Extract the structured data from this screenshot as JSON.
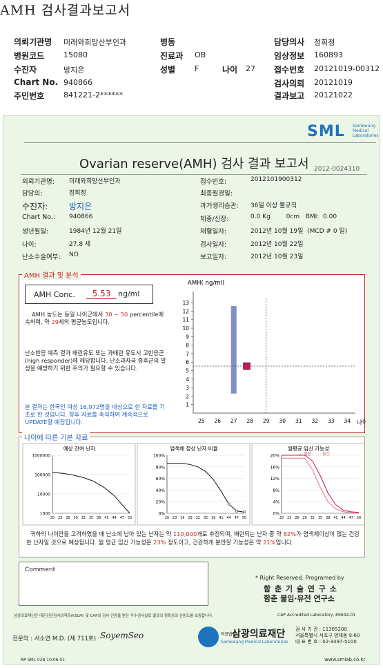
{
  "header": {
    "title": "AMH 검사결과보고서",
    "rows": [
      {
        "l1": "의뢰기관명",
        "v1": "미래와희망산부인과",
        "l2": "병동",
        "v2": "",
        "l3": "담당의사",
        "v3": "정희정"
      },
      {
        "l1": "병원코드",
        "v1": "15080",
        "l2": "진료과",
        "v2": "OB",
        "l3": "임상정보",
        "v3": "160893"
      },
      {
        "l1": "수진자",
        "v1": "방지은",
        "l2": "성별",
        "v2": "F",
        "l2b": "나이",
        "v2b": "27",
        "l3": "접수번호",
        "v3": "20121019-00312"
      },
      {
        "l1": "Chart No.",
        "v1": "940866",
        "l2": "",
        "v2": "",
        "l3": "검사의뢰",
        "v3": "20121019"
      },
      {
        "l1": "주민번호",
        "v1": "841221-2******",
        "l2": "",
        "v2": "",
        "l3": "결과보고",
        "v3": "20121022"
      }
    ]
  },
  "report": {
    "logo": "SML",
    "logo_sub": [
      "Samkwang",
      "Medical",
      "Laboratories"
    ],
    "title": "Ovarian reserve(AMH) 검사 결과 보고서",
    "doc_no": "2012-0024310",
    "left": [
      {
        "label": "의뢰기관명:",
        "value": "미래와희망산부인과"
      },
      {
        "label": "담당의:",
        "value": "정희정"
      },
      {
        "label": "수진자:",
        "value": "방지은"
      },
      {
        "label": "Chart No.:",
        "value": "940866"
      },
      {
        "label": "생년월일:",
        "value": "1984년 12월 21일"
      },
      {
        "label": "나이:",
        "value": "27.8 세"
      },
      {
        "label": "난소수술여부:",
        "value": "NO"
      }
    ],
    "right": [
      {
        "label": "접수번호:",
        "value": "2012101900312"
      },
      {
        "label": "최종월경일:",
        "value": ""
      },
      {
        "label": "과거생리습관:",
        "value": "36일 이상 불규칙"
      },
      {
        "label": "체중/신장:",
        "value": "0.0 Kg        0cm   BMI:  0.00"
      },
      {
        "label": "채혈일자:",
        "value": "2012년 10월 19일  (MCD # 0 일)"
      },
      {
        "label": "검사일자:",
        "value": "2012년 10월 22일"
      },
      {
        "label": "보고일자:",
        "value": "2012년 10월 23일"
      }
    ],
    "result_section_title": "AMH 결과 및 분석",
    "amh_label": "AMH Conc.",
    "amh_value": "5.53",
    "amh_unit": "ng/ml",
    "interpret1_a": "AMH 농도는 동일 나이군에서",
    "interpret1_b": "30 ~ 50",
    "interpret1_c": "percentile에 속하며, 약",
    "interpret1_d": "29",
    "interpret1_e": "세의 평균농도입니다.",
    "interpret2": "난소반응 예측 결과 배란유도 또는 과배란 유도시 고반응군 (high responder)에 해당합니다. 난소과자극 증후군의 발생을 예방하기 위한 주의가 필요할 수 있습니다.",
    "interpret3": "본 결과는 한국인 여성 16,972명을 대상으로 한 자료를 기초로 한 것입니다. 향후 자료를 축적하여 계속적으로 UPDATE할 예정입니다.",
    "age_section_title": "나이에 따른 기본 자료",
    "chart1_title": "예상 잔여 난자",
    "chart2_title": "염색체 정상 난자 비율",
    "chart3_title": "월평균 임신 가능성",
    "chart3_legend_a": "-: 임신",
    "chart3_legend_b": "-: 출산",
    "summary_a": "귀하의 나이만을 고려하였을 때 난소에 남아 있는 난자는 약",
    "summary_eggs": "110,000",
    "summary_b": "개로 추정되며, 배란되는 난자 중 약",
    "summary_pct": "82%",
    "summary_c": "가 염색체이상이 없는 건강한 난자일 것으로 예상됩니다. 월 평균 임신 가능성은",
    "summary_preg": "23%",
    "summary_d": "정도이고, 건강하게 분만할 가능성은 약",
    "summary_birth": "21%",
    "summary_e": "입니다.",
    "comment_label": "Comment",
    "rights": "* Right Reserved. Programed by",
    "lab1": "함 춘  기 술  연 구 소",
    "lab2": "함춘 불임·유전 연구소",
    "cert": "삼광의료재단은 대한진단검사의학회(KSLM) 및 CAP의 검사 인증을 받은 우수검사실로 결과의 정확성과 신빙도를 보증합니다.",
    "cap": "CAP  Accredited  Laboratory,  69944-01",
    "doctor": "전문의 : 서소연 M.D. (제 711호)",
    "signature": "SoyemSeo",
    "foundation_small": "의료법인",
    "foundation": "삼광의료재단",
    "foundation_en": "Samkwang Medical Laboratories",
    "contact1": "검 사 기 관 : 11365200",
    "contact2": "서울특별시 서초구 양재동 9-60",
    "contact3": "대 표 번 호 : 02-3497-5100",
    "footer_left": "RP  SML  028  10.06.01",
    "footer_right": "www.smlab.co.kr"
  },
  "chart_data": [
    {
      "type": "scatter",
      "title": "",
      "ylabel": "AMH( ng/ml)",
      "xlabel": "나이",
      "x_ticks": [
        25,
        26,
        27,
        28,
        29,
        30,
        31,
        32,
        33,
        34
      ],
      "y_ticks": [
        1,
        2,
        3,
        4,
        5,
        6,
        7,
        8,
        9,
        10,
        11,
        12,
        13
      ],
      "xlim": [
        24.5,
        34.5
      ],
      "ylim": [
        0,
        13.5
      ],
      "range_bar": {
        "x": 27,
        "y_low": 2.3,
        "y_high": 12.6
      },
      "point": {
        "x": 27.8,
        "y": 5.53
      },
      "ref_lines": {
        "x": 29,
        "y": 5.53
      }
    },
    {
      "type": "line",
      "title": "예상 잔여 난자",
      "y_scale": "log",
      "y_ticks": [
        1000,
        10000,
        100000,
        1000000
      ],
      "x_ticks": [
        20,
        23,
        26,
        29,
        32,
        35,
        38,
        41,
        44,
        47,
        50
      ],
      "x": [
        20,
        24,
        28,
        32,
        36,
        40,
        44,
        48,
        50
      ],
      "y": [
        130000,
        115000,
        95000,
        70000,
        45000,
        22000,
        8000,
        2000,
        1000
      ]
    },
    {
      "type": "line",
      "title": "염색체 정상 난자 비율",
      "y_ticks": [
        "0%",
        "20%",
        "40%",
        "60%",
        "80%",
        "100%"
      ],
      "x_ticks": [
        20,
        23,
        26,
        29,
        32,
        35,
        38,
        41,
        44,
        47,
        50
      ],
      "x": [
        20,
        26,
        29,
        32,
        35,
        38,
        41,
        44,
        47,
        50
      ],
      "y": [
        86,
        86,
        84,
        80,
        72,
        58,
        38,
        16,
        4,
        2
      ]
    },
    {
      "type": "line",
      "title": "월평균 임신 가능성",
      "y_ticks": [
        "0%",
        "4%",
        "8%",
        "12%",
        "16%",
        "20%"
      ],
      "x_ticks": [
        20,
        23,
        26,
        29,
        32,
        35,
        38,
        41,
        44,
        47,
        50
      ],
      "series": [
        {
          "name": "임신",
          "color": "#c2185b",
          "x": [
            20,
            29,
            32,
            35,
            38,
            41,
            44,
            47,
            50
          ],
          "y": [
            20,
            20,
            18,
            13,
            7,
            3,
            1,
            0.5,
            0.3
          ]
        },
        {
          "name": "출산",
          "color": "#e57373",
          "x": [
            20,
            29,
            32,
            35,
            38,
            41,
            44,
            47,
            50
          ],
          "y": [
            19,
            19,
            15,
            9,
            4,
            1.5,
            0.5,
            0.2,
            0.1
          ]
        }
      ]
    }
  ]
}
